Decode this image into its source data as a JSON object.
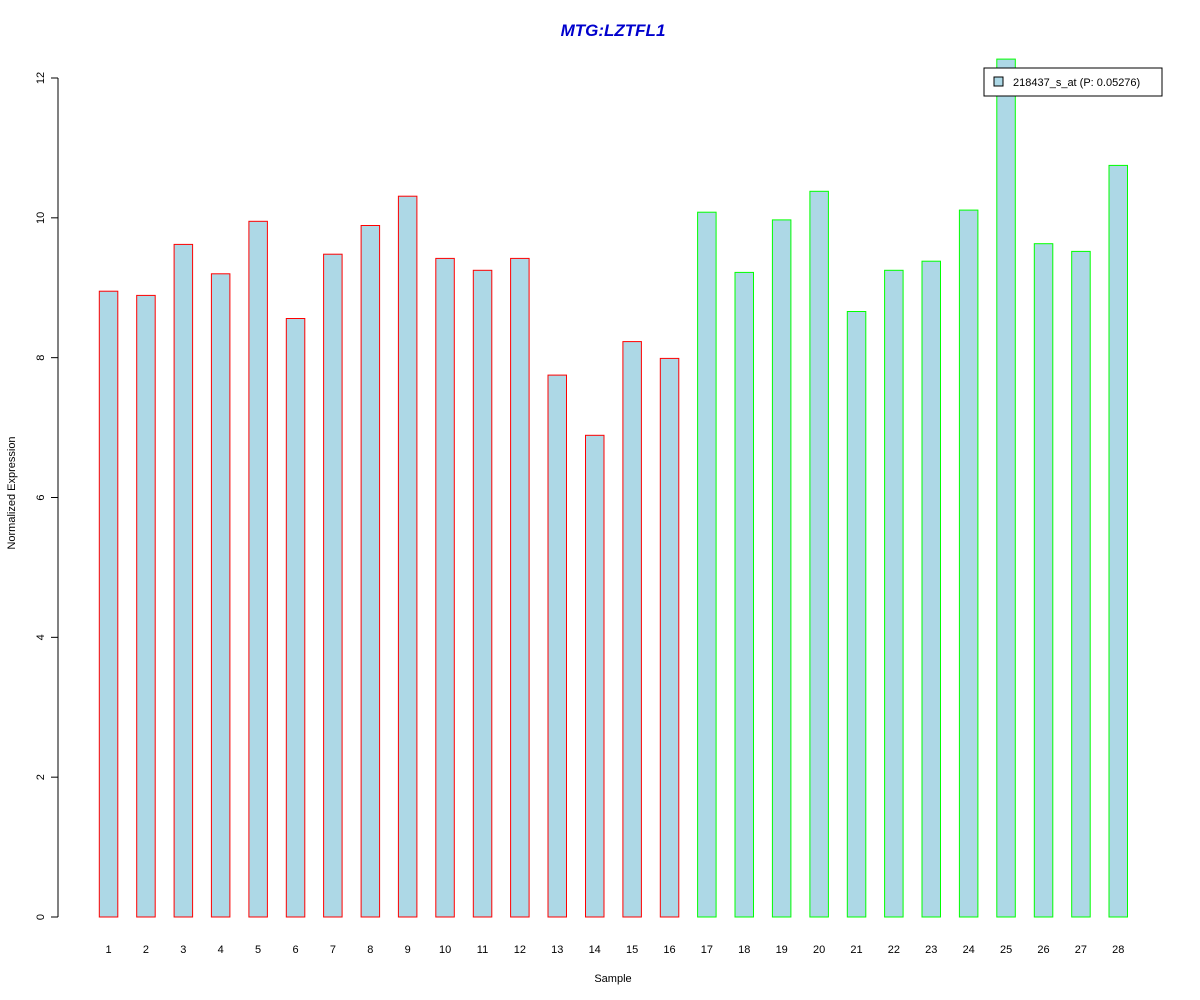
{
  "chart_data": {
    "type": "bar",
    "title": "MTG:LZTFL1",
    "xlabel": "Sample",
    "ylabel": "Normalized Expression",
    "ylim": [
      0,
      12
    ],
    "yticks": [
      0,
      2,
      4,
      6,
      8,
      10,
      12
    ],
    "categories": [
      "1",
      "2",
      "3",
      "4",
      "5",
      "6",
      "7",
      "8",
      "9",
      "10",
      "11",
      "12",
      "13",
      "14",
      "15",
      "16",
      "17",
      "18",
      "19",
      "20",
      "21",
      "22",
      "23",
      "24",
      "25",
      "26",
      "27",
      "28"
    ],
    "series": [
      {
        "name": "218437_s_at (P: 0.05276)",
        "values": [
          8.95,
          8.89,
          9.62,
          9.2,
          9.95,
          8.56,
          9.48,
          9.89,
          10.31,
          9.42,
          9.25,
          9.42,
          7.75,
          6.89,
          8.23,
          7.99,
          10.08,
          9.22,
          9.97,
          10.38,
          8.66,
          9.25,
          9.38,
          10.11,
          12.27,
          9.63,
          9.52,
          10.75
        ]
      }
    ],
    "groups": [
      "red",
      "red",
      "red",
      "red",
      "red",
      "red",
      "red",
      "red",
      "red",
      "red",
      "red",
      "red",
      "red",
      "red",
      "red",
      "red",
      "green",
      "green",
      "green",
      "green",
      "green",
      "green",
      "green",
      "green",
      "green",
      "green",
      "green",
      "green"
    ],
    "legend": {
      "position": "top-right"
    },
    "grid": false,
    "colors": {
      "bar_fill": "#add8e6",
      "group_red": "#ff0000",
      "group_green": "#00ff00",
      "title": "#0000cd"
    }
  }
}
